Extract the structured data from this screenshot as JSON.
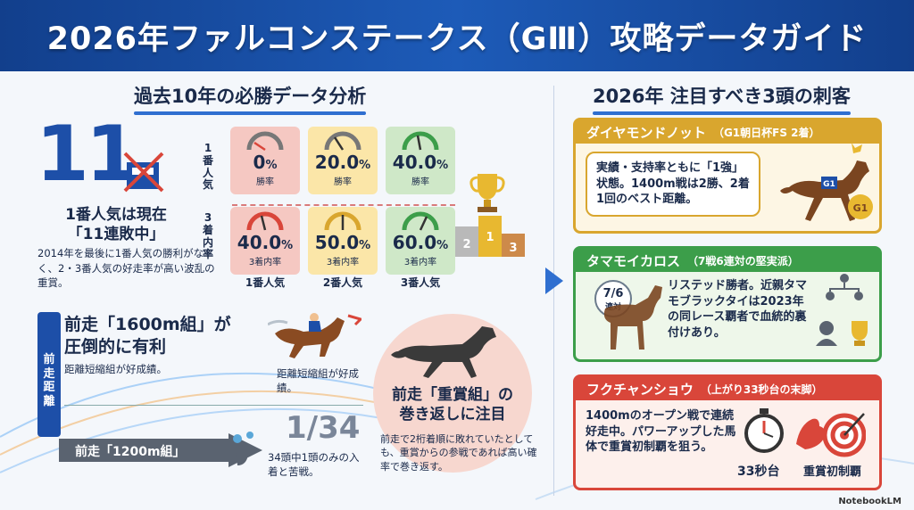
{
  "header": {
    "title": "2026年ファルコンステークス（GⅢ）攻略データガイド"
  },
  "left": {
    "section_title": "過去10年の必勝データ分析",
    "big_number": "11",
    "headline": "1番人気は現在「11連敗中」",
    "headline_line1": "1番人気は現在",
    "headline_line2": "「11連敗中」",
    "description": "2014年を最後に1番人気の勝利がなく、2・3番人気の好走率が高い波乱の重賞。",
    "row_labels": [
      "1番人気",
      "3着内率"
    ],
    "row_label_chars": [
      [
        "1",
        "番",
        "人",
        "気"
      ],
      [
        "3",
        "着",
        "内",
        "率"
      ]
    ],
    "columns": [
      {
        "label": "1番人気",
        "win_rate": "0",
        "win_caption": "勝率",
        "top3_rate": "40.0",
        "top3_caption": "3着内率",
        "color": "#f5c8c2"
      },
      {
        "label": "2番人気",
        "win_rate": "20.0",
        "win_caption": "勝率",
        "top3_rate": "50.0",
        "top3_caption": "3着内率",
        "color": "#fbe6a8"
      },
      {
        "label": "3番人気",
        "win_rate": "40.0",
        "win_caption": "勝率",
        "top3_rate": "60.0",
        "top3_caption": "3着内率",
        "color": "#cfe8c8"
      }
    ],
    "percent_sign": "%",
    "podium_labels": [
      "2",
      "1",
      "3"
    ],
    "distance": {
      "side_label": "前走距離",
      "side_chars": [
        "前",
        "走",
        "距",
        "離"
      ],
      "heading_line1": "前走「1600m組」が",
      "heading_line2": "圧倒的に有利",
      "heading_sub": "距離短縮組が好成績。",
      "jockey_caption": "距離短縮組が好成績。",
      "arrow_label": "前走「1200m組」",
      "fraction": "1/34",
      "fraction_caption": "34頭中1頭のみの入着と苦戦。"
    },
    "jusho": {
      "heading_line1": "前走「重賞組」の",
      "heading_line2": "巻き返しに注目",
      "description": "前走で2桁着順に敗れていたとしても、重賞からの参戦であれば高い確率で巻き返す。"
    }
  },
  "right": {
    "section_title": "2026年 注目すべき3頭の刺客",
    "horses": [
      {
        "name": "ダイヤモンドノット",
        "note": "（G1朝日杯FS 2着）",
        "text": "実績・支持率ともに「1強」状態。1400m戦は2勝、2着1回のベスト距離。",
        "color": "#d9a62e",
        "badge": "G1"
      },
      {
        "name": "タマモイカロス",
        "note": "（7戦6連対の堅実派）",
        "text": "リステッド勝者。近親タマモブラックタイは2023年の同レース覇者で血統的裏付けあり。",
        "color": "#3c9e4a",
        "stamp_top": "7/6",
        "stamp_bottom": "連対"
      },
      {
        "name": "フクチャンショウ",
        "note": "（上がり33秒台の末脚）",
        "text": "1400mのオープン戦で連続好走中。パワーアップした馬体で重賞初制覇を狙う。",
        "color": "#d9463a",
        "icon_labels": [
          "33秒台",
          "重賞初制覇"
        ]
      }
    ]
  },
  "footer": {
    "brand": "NotebookLM"
  },
  "colors": {
    "primary": "#1d4fa8",
    "gold": "#d9a62e",
    "green": "#3c9e4a",
    "red": "#d9463a"
  }
}
